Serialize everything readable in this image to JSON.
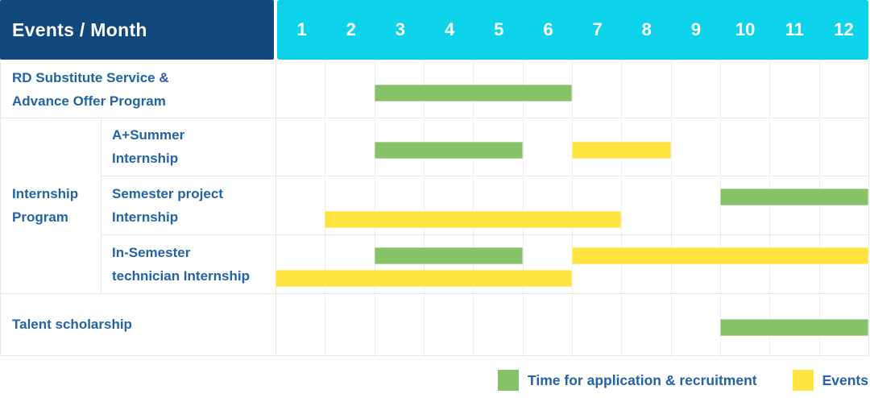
{
  "title": "Events / Month",
  "months": [
    "1",
    "2",
    "3",
    "4",
    "5",
    "6",
    "7",
    "8",
    "9",
    "10",
    "11",
    "12"
  ],
  "colors": {
    "header_bg": "#11497E",
    "month_header_bg": "#0CD3EA",
    "recruitment_green": "#86C267",
    "events_yellow": "#FFE33E",
    "label_blue": "#2464A6",
    "grid_gray": "#E7E7E7"
  },
  "group": {
    "label": "Internship Program",
    "label_lines": [
      "Internship",
      "Program"
    ],
    "first_row": 1,
    "last_row": 3
  },
  "rows": [
    {
      "name": "rd-substitute-service",
      "label_lines": [
        "RD Substitute Service &",
        "Advance Offer Program"
      ],
      "indent": false,
      "bars": [
        {
          "kind": "recruitment",
          "start": 3,
          "end": 6,
          "lane": "mid"
        }
      ]
    },
    {
      "name": "a-plus-summer-internship",
      "label_lines": [
        "A+Summer",
        "Internship"
      ],
      "indent": true,
      "bars": [
        {
          "kind": "recruitment",
          "start": 3,
          "end": 5,
          "lane": "mid"
        },
        {
          "kind": "events",
          "start": 7,
          "end": 8,
          "lane": "mid"
        }
      ]
    },
    {
      "name": "semester-project-internship",
      "label_lines": [
        "Semester project",
        "Internship"
      ],
      "indent": true,
      "bars": [
        {
          "kind": "recruitment",
          "start": 10,
          "end": 12,
          "lane": "top"
        },
        {
          "kind": "events",
          "start": 2,
          "end": 7,
          "lane": "bottom"
        }
      ]
    },
    {
      "name": "in-semester-technician-internship",
      "label_lines": [
        "In-Semester",
        "technician Internship"
      ],
      "indent": true,
      "bars": [
        {
          "kind": "recruitment",
          "start": 3,
          "end": 5,
          "lane": "top"
        },
        {
          "kind": "events",
          "start": 7,
          "end": 12,
          "lane": "top"
        },
        {
          "kind": "events",
          "start": 1,
          "end": 6,
          "lane": "bottom"
        }
      ]
    },
    {
      "name": "talent-scholarship",
      "label_lines": [
        "Talent scholarship"
      ],
      "indent": false,
      "bars": [
        {
          "kind": "recruitment",
          "start": 10,
          "end": 12,
          "lane": "mid"
        }
      ]
    }
  ],
  "legend": [
    {
      "kind": "recruitment",
      "label": "Time for application & recruitment"
    },
    {
      "kind": "events",
      "label": "Events"
    }
  ],
  "chart_data": {
    "type": "table",
    "subtype": "gantt",
    "title": "Events / Month",
    "x_axis": {
      "label": "Month",
      "ticks": [
        1,
        2,
        3,
        4,
        5,
        6,
        7,
        8,
        9,
        10,
        11,
        12
      ],
      "range": [
        1,
        12
      ]
    },
    "legend": [
      {
        "color": "#86C267",
        "label": "Time for application & recruitment"
      },
      {
        "color": "#FFE33E",
        "label": "Events"
      }
    ],
    "rows": [
      {
        "event": "RD Substitute Service & Advance Offer Program",
        "group": null,
        "recruitment_month_ranges": [
          [
            3,
            6
          ]
        ],
        "events_month_ranges": []
      },
      {
        "event": "A+Summer Internship",
        "group": "Internship Program",
        "recruitment_month_ranges": [
          [
            3,
            5
          ]
        ],
        "events_month_ranges": [
          [
            7,
            8
          ]
        ]
      },
      {
        "event": "Semester project Internship",
        "group": "Internship Program",
        "recruitment_month_ranges": [
          [
            10,
            12
          ]
        ],
        "events_month_ranges": [
          [
            2,
            7
          ]
        ]
      },
      {
        "event": "In-Semester technician Internship",
        "group": "Internship Program",
        "recruitment_month_ranges": [
          [
            3,
            5
          ]
        ],
        "events_month_ranges": [
          [
            1,
            6
          ],
          [
            7,
            12
          ]
        ]
      },
      {
        "event": "Talent scholarship",
        "group": null,
        "recruitment_month_ranges": [
          [
            10,
            12
          ]
        ],
        "events_month_ranges": []
      }
    ]
  }
}
